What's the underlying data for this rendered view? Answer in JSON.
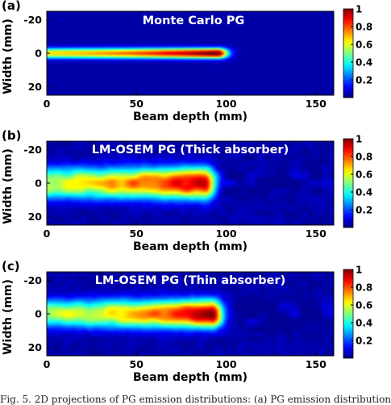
{
  "caption": "Fig. 5.  2D projections of PG emission distributions: (a) PG emission distribution",
  "chart_data": [
    {
      "type": "heatmap",
      "panel_label": "(a)",
      "title": "Monte Carlo PG",
      "xlabel": "Beam depth (mm)",
      "ylabel": "Width (mm)",
      "xlim": [
        0,
        160
      ],
      "ylim": [
        -25,
        25
      ],
      "xticks": [
        0,
        50,
        100,
        150
      ],
      "yticks": [
        -20,
        0,
        20
      ],
      "colorbar": {
        "range": [
          0,
          1
        ],
        "ticks": [
          0.2,
          0.4,
          0.6,
          0.8,
          1
        ],
        "tick_labels": [
          "0.2",
          "0.4",
          "0.6",
          "0.8",
          "1"
        ]
      },
      "colormap": "jet",
      "beam": {
        "start_depth": 0,
        "end_depth": 100,
        "peak_depth": 95,
        "half_width": 3,
        "level_at_start": 0.62,
        "level_at_peak": 1.0,
        "noise": 0.0
      }
    },
    {
      "type": "heatmap",
      "panel_label": "(b)",
      "title": "LM-OSEM PG (Thick absorber)",
      "xlabel": "Beam depth (mm)",
      "ylabel": "Width (mm)",
      "xlim": [
        0,
        160
      ],
      "ylim": [
        -25,
        25
      ],
      "xticks": [
        0,
        50,
        100,
        150
      ],
      "yticks": [
        -20,
        0,
        20
      ],
      "colorbar": {
        "range": [
          0,
          1
        ],
        "ticks": [
          0.2,
          0.4,
          0.6,
          0.8,
          1
        ],
        "tick_labels": [
          "0.2",
          "0.4",
          "0.6",
          "0.8",
          "1"
        ]
      },
      "colormap": "jet",
      "beam": {
        "start_depth": 0,
        "end_depth": 100,
        "peak_depth": 88,
        "half_width": 9,
        "level_at_start": 0.55,
        "level_at_peak": 0.95,
        "noise": 0.08
      }
    },
    {
      "type": "heatmap",
      "panel_label": "(c)",
      "title": "LM-OSEM PG (Thin absorber)",
      "xlabel": "Beam depth (mm)",
      "ylabel": "Width (mm)",
      "xlim": [
        0,
        160
      ],
      "ylim": [
        -25,
        25
      ],
      "xticks": [
        0,
        50,
        100,
        150
      ],
      "yticks": [
        -20,
        0,
        20
      ],
      "colorbar": {
        "range": [
          0,
          1
        ],
        "ticks": [
          0.2,
          0.4,
          0.6,
          0.8,
          1
        ],
        "tick_labels": [
          "0.2",
          "0.4",
          "0.6",
          "0.8",
          "1"
        ]
      },
      "colormap": "jet",
      "beam": {
        "start_depth": 0,
        "end_depth": 100,
        "peak_depth": 92,
        "half_width": 8,
        "level_at_start": 0.5,
        "level_at_peak": 1.0,
        "noise": 0.08
      }
    }
  ]
}
